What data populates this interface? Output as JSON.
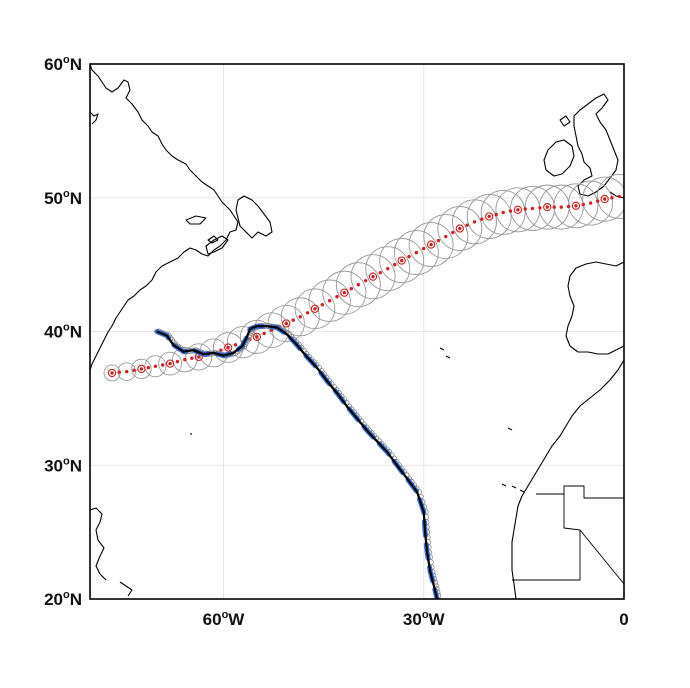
{
  "map": {
    "lat_range": [
      20,
      60
    ],
    "lon_range": [
      -80,
      0
    ],
    "grid": true,
    "lat_ticks": [
      {
        "value": 20,
        "num": "20",
        "sup": "o",
        "hemi": "N"
      },
      {
        "value": 30,
        "num": "30",
        "sup": "o",
        "hemi": "N"
      },
      {
        "value": 40,
        "num": "40",
        "sup": "o",
        "hemi": "N"
      },
      {
        "value": 50,
        "num": "50",
        "sup": "o",
        "hemi": "N"
      },
      {
        "value": 60,
        "num": "60",
        "sup": "o",
        "hemi": "N"
      }
    ],
    "lon_ticks": [
      {
        "value": -60,
        "num": "60",
        "sup": "o",
        "hemi": "W"
      },
      {
        "value": -30,
        "num": "30",
        "sup": "o",
        "hemi": "W"
      },
      {
        "value": 0,
        "num": "0",
        "sup": "",
        "hemi": ""
      }
    ],
    "colors": {
      "coast": "#000000",
      "grid": "#e6e6e6",
      "track_dots": "#d42020",
      "uncertainty_circles": "#9a9a9a",
      "drifter_track": "#000000",
      "drifter_highlight": "#2a62c9",
      "drifter_circles": "#8c8c8c"
    }
  },
  "chart_data": {
    "type": "map-tracks",
    "series": [
      {
        "kind": "red-dotted-track-with-uncertainty-circles",
        "points": [
          [
            -76.7,
            36.9
          ],
          [
            -74.5,
            37.0
          ],
          [
            -72.3,
            37.2
          ],
          [
            -70.2,
            37.4
          ],
          [
            -68.0,
            37.6
          ],
          [
            -65.8,
            37.9
          ],
          [
            -63.7,
            38.1
          ],
          [
            -61.5,
            38.4
          ],
          [
            -59.3,
            38.8
          ],
          [
            -57.1,
            39.2
          ],
          [
            -55.0,
            39.6
          ],
          [
            -52.8,
            40.1
          ],
          [
            -50.6,
            40.6
          ],
          [
            -48.5,
            41.1
          ],
          [
            -46.3,
            41.7
          ],
          [
            -44.1,
            42.3
          ],
          [
            -41.9,
            42.9
          ],
          [
            -39.8,
            43.5
          ],
          [
            -37.6,
            44.1
          ],
          [
            -35.4,
            44.7
          ],
          [
            -33.3,
            45.3
          ],
          [
            -31.1,
            45.9
          ],
          [
            -28.9,
            46.5
          ],
          [
            -26.7,
            47.1
          ],
          [
            -24.6,
            47.7
          ],
          [
            -22.4,
            48.2
          ],
          [
            -20.2,
            48.6
          ],
          [
            -18.1,
            48.9
          ],
          [
            -15.9,
            49.1
          ],
          [
            -13.7,
            49.2
          ],
          [
            -11.5,
            49.3
          ],
          [
            -9.4,
            49.3
          ],
          [
            -7.2,
            49.4
          ],
          [
            -5.0,
            49.6
          ],
          [
            -2.9,
            49.9
          ],
          [
            -0.7,
            50.1
          ]
        ]
      },
      {
        "kind": "drifter-track",
        "points": [
          [
            -70.0,
            40.0
          ],
          [
            -68.5,
            39.7
          ],
          [
            -67.5,
            39.0
          ],
          [
            -66.0,
            38.5
          ],
          [
            -64.5,
            38.6
          ],
          [
            -63.0,
            38.3
          ],
          [
            -61.5,
            38.4
          ],
          [
            -60.0,
            38.2
          ],
          [
            -58.5,
            38.4
          ],
          [
            -57.2,
            38.9
          ],
          [
            -56.5,
            39.6
          ],
          [
            -56.0,
            40.2
          ],
          [
            -55.0,
            40.4
          ],
          [
            -53.5,
            40.4
          ],
          [
            -52.0,
            40.3
          ],
          [
            -50.5,
            39.8
          ],
          [
            -49.0,
            39.0
          ],
          [
            -47.5,
            38.1
          ],
          [
            -46.0,
            37.3
          ],
          [
            -44.5,
            36.3
          ],
          [
            -43.0,
            35.4
          ],
          [
            -41.5,
            34.4
          ],
          [
            -40.0,
            33.5
          ],
          [
            -38.5,
            32.6
          ],
          [
            -37.0,
            31.8
          ],
          [
            -35.5,
            31.0
          ],
          [
            -34.0,
            30.0
          ],
          [
            -32.5,
            29.0
          ],
          [
            -31.0,
            28.0
          ],
          [
            -30.0,
            26.5
          ],
          [
            -29.8,
            25.0
          ],
          [
            -29.5,
            23.5
          ],
          [
            -29.0,
            22.0
          ],
          [
            -28.5,
            21.0
          ],
          [
            -28.0,
            20.0
          ]
        ]
      }
    ]
  }
}
